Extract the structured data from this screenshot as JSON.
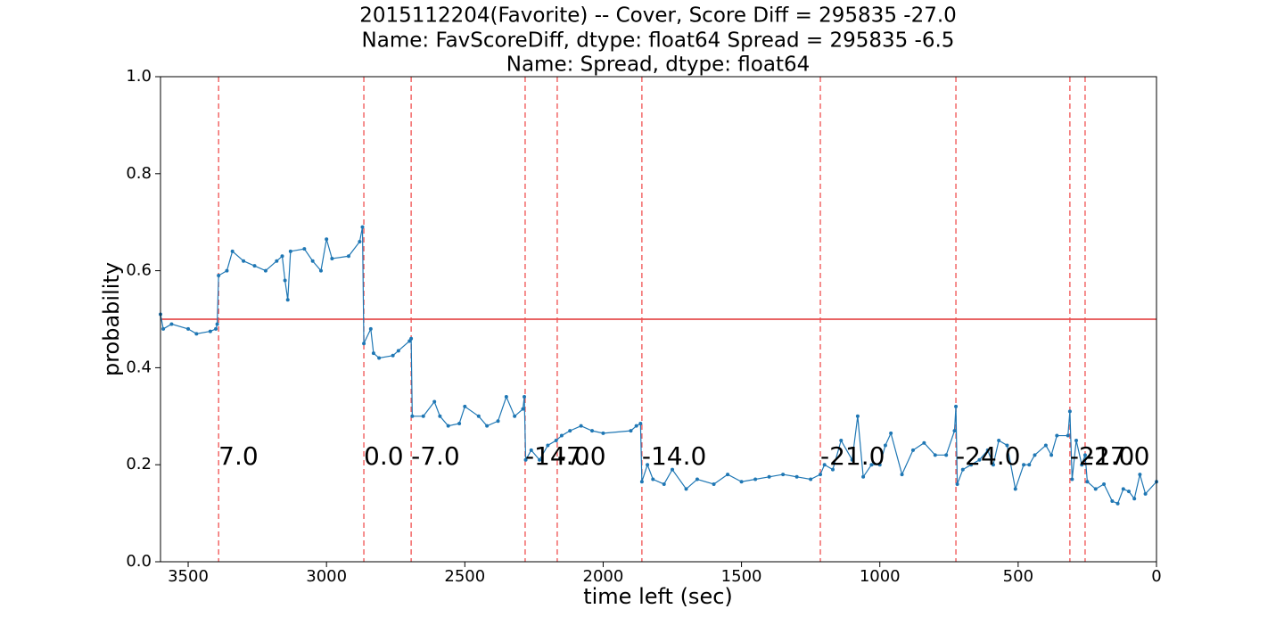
{
  "chart_data": {
    "type": "line",
    "title_lines": [
      "2015112204(Favorite) -- Cover, Score Diff = 295835   -27.0",
      "Name: FavScoreDiff, dtype: float64 Spread = 295835   -6.5",
      "Name: Spread, dtype: float64"
    ],
    "x_label": "time left (sec)",
    "y_label": "probability",
    "x": [
      3600,
      3590,
      3560,
      3500,
      3470,
      3420,
      3400,
      3395,
      3390,
      3360,
      3340,
      3300,
      3260,
      3220,
      3180,
      3160,
      3150,
      3140,
      3130,
      3080,
      3050,
      3020,
      3000,
      2980,
      2920,
      2880,
      2870,
      2865,
      2840,
      2830,
      2810,
      2760,
      2740,
      2700,
      2694,
      2690,
      2650,
      2610,
      2590,
      2560,
      2520,
      2500,
      2450,
      2420,
      2380,
      2350,
      2320,
      2290,
      2285,
      2280,
      2260,
      2230,
      2200,
      2170,
      2150,
      2120,
      2080,
      2040,
      2000,
      1900,
      1880,
      1865,
      1860,
      1840,
      1820,
      1780,
      1750,
      1700,
      1660,
      1600,
      1550,
      1500,
      1450,
      1400,
      1350,
      1300,
      1250,
      1215,
      1200,
      1170,
      1140,
      1100,
      1080,
      1060,
      1030,
      1000,
      980,
      960,
      920,
      880,
      840,
      800,
      760,
      730,
      725,
      720,
      700,
      670,
      640,
      610,
      590,
      570,
      540,
      510,
      480,
      460,
      440,
      400,
      380,
      360,
      320,
      313,
      305,
      290,
      270,
      258,
      250,
      220,
      190,
      160,
      140,
      120,
      100,
      80,
      60,
      40,
      0
    ],
    "series": [
      {
        "name": "probability",
        "color": "#1f77b4",
        "values": [
          0.51,
          0.48,
          0.49,
          0.48,
          0.47,
          0.475,
          0.48,
          0.49,
          0.59,
          0.6,
          0.64,
          0.62,
          0.61,
          0.6,
          0.62,
          0.63,
          0.58,
          0.54,
          0.64,
          0.645,
          0.62,
          0.6,
          0.665,
          0.625,
          0.63,
          0.66,
          0.69,
          0.45,
          0.48,
          0.43,
          0.42,
          0.425,
          0.435,
          0.455,
          0.46,
          0.3,
          0.3,
          0.33,
          0.3,
          0.28,
          0.285,
          0.32,
          0.3,
          0.28,
          0.29,
          0.34,
          0.3,
          0.315,
          0.34,
          0.21,
          0.23,
          0.21,
          0.24,
          0.25,
          0.26,
          0.27,
          0.28,
          0.27,
          0.265,
          0.27,
          0.28,
          0.285,
          0.165,
          0.2,
          0.17,
          0.16,
          0.19,
          0.15,
          0.17,
          0.16,
          0.18,
          0.165,
          0.17,
          0.175,
          0.18,
          0.175,
          0.17,
          0.18,
          0.2,
          0.19,
          0.25,
          0.21,
          0.3,
          0.175,
          0.2,
          0.2,
          0.24,
          0.265,
          0.18,
          0.23,
          0.245,
          0.22,
          0.22,
          0.27,
          0.32,
          0.16,
          0.19,
          0.2,
          0.21,
          0.23,
          0.2,
          0.25,
          0.24,
          0.15,
          0.2,
          0.2,
          0.22,
          0.24,
          0.22,
          0.26,
          0.26,
          0.31,
          0.17,
          0.25,
          0.2,
          0.22,
          0.165,
          0.15,
          0.16,
          0.125,
          0.12,
          0.15,
          0.145,
          0.13,
          0.18,
          0.14,
          0.165
        ]
      }
    ],
    "hline": {
      "y": 0.5,
      "color": "#e03030"
    },
    "annotations": [
      {
        "x": 3390,
        "y": 0.2,
        "text": "7.0"
      },
      {
        "x": 2865,
        "y": 0.2,
        "text": "0.0"
      },
      {
        "x": 2694,
        "y": 0.2,
        "text": "-7.0"
      },
      {
        "x": 2282,
        "y": 0.2,
        "text": "-14.0"
      },
      {
        "x": 2166,
        "y": 0.2,
        "text": "-7.0"
      },
      {
        "x": 1860,
        "y": 0.2,
        "text": "-14.0"
      },
      {
        "x": 1215,
        "y": 0.2,
        "text": "-21.0"
      },
      {
        "x": 725,
        "y": 0.2,
        "text": "-24.0"
      },
      {
        "x": 313,
        "y": 0.2,
        "text": "-21.0"
      },
      {
        "x": 258,
        "y": 0.2,
        "text": "-27.0"
      }
    ],
    "vline_color": "#f05050",
    "xlim": [
      3600,
      0
    ],
    "xticks": [
      3500,
      3000,
      2500,
      2000,
      1500,
      1000,
      500,
      0
    ],
    "ylim": [
      0,
      1
    ],
    "yticks": [
      {
        "value": 0,
        "label": "0.0"
      },
      {
        "value": 0.2,
        "label": "0.2"
      },
      {
        "value": 0.4,
        "label": "0.4"
      },
      {
        "value": 0.6,
        "label": "0.6"
      },
      {
        "value": 0.8,
        "label": "0.8"
      },
      {
        "value": 1,
        "label": "1.0"
      }
    ]
  }
}
